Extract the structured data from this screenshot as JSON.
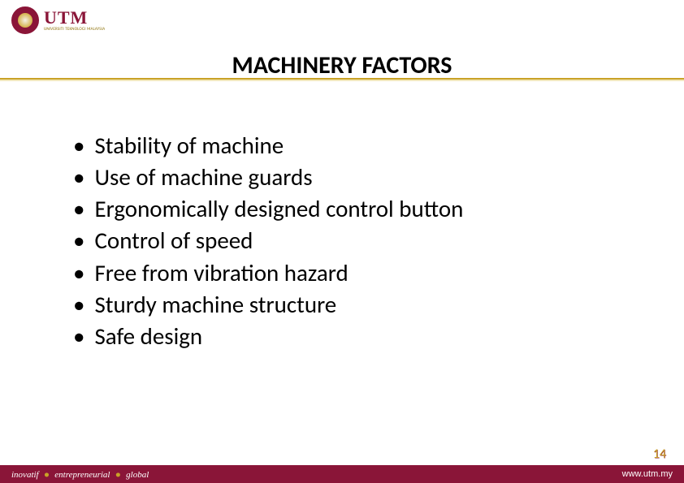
{
  "logo": {
    "name": "UTM",
    "subtitle": "UNIVERSITI TEKNOLOGI MALAYSIA"
  },
  "title": "MACHINERY FACTORS",
  "bullets": [
    "Stability of machine",
    "Use of machine guards",
    "Ergonomically designed control button",
    "Control of speed",
    "Free from vibration hazard",
    "Sturdy machine structure",
    "Safe design"
  ],
  "footer": {
    "tags": [
      "inovatif",
      "entrepreneurial",
      "global"
    ],
    "url": "www.utm.my"
  },
  "page_number": "14",
  "colors": {
    "brand_maroon": "#8a1538",
    "brand_gold": "#c9a227",
    "text": "#000000",
    "background": "#ffffff"
  }
}
